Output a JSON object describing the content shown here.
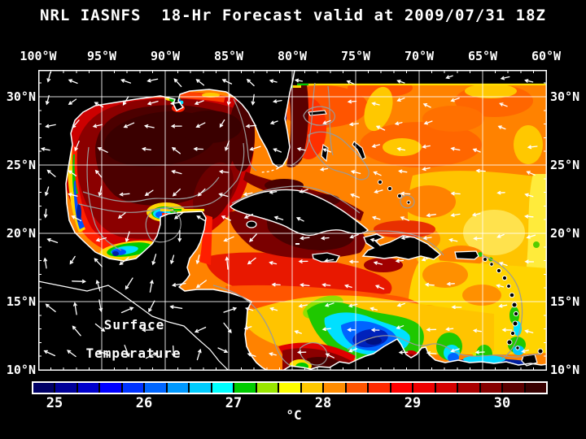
{
  "title": "NRL IASNFS  18-Hr Forecast valid at 2009/07/31 18Z",
  "map": {
    "lon_ticks": [
      "100°W",
      "95°W",
      "90°W",
      "85°W",
      "80°W",
      "75°W",
      "70°W",
      "65°W",
      "60°W"
    ],
    "lat_ticks": [
      "30°N",
      "25°N",
      "20°N",
      "15°N",
      "10°N"
    ],
    "annotation": {
      "line1": "Surface",
      "line2": "Temperature"
    }
  },
  "colorbar": {
    "ticks": [
      "25",
      "26",
      "27",
      "28",
      "29",
      "30"
    ],
    "unit": "°C",
    "colors": [
      "#000066",
      "#000099",
      "#0000CC",
      "#0000FF",
      "#0033FF",
      "#0066FF",
      "#0099FF",
      "#00CCFF",
      "#00FFFF",
      "#00CC00",
      "#99E600",
      "#FFFF00",
      "#FFC800",
      "#FF8C00",
      "#FF5500",
      "#FF2A00",
      "#FF0000",
      "#EE0000",
      "#D40000",
      "#AA0000",
      "#860000",
      "#5C0000",
      "#380000"
    ]
  },
  "colors": {
    "background": "#000000",
    "frame": "#FFFFFF",
    "grid": "#FFFFFF",
    "coastline": "#FFFFFF",
    "bathy_contour": "#9A9A9A",
    "wind_arrow": "#FFFFFF",
    "land": "#000000",
    "ocean_warm_core": "#3A0000",
    "ocean_base_atlantic": "#FF8200",
    "ocean_yellow_band": "#FFC400",
    "upwelling_cold": "#0022BB"
  }
}
